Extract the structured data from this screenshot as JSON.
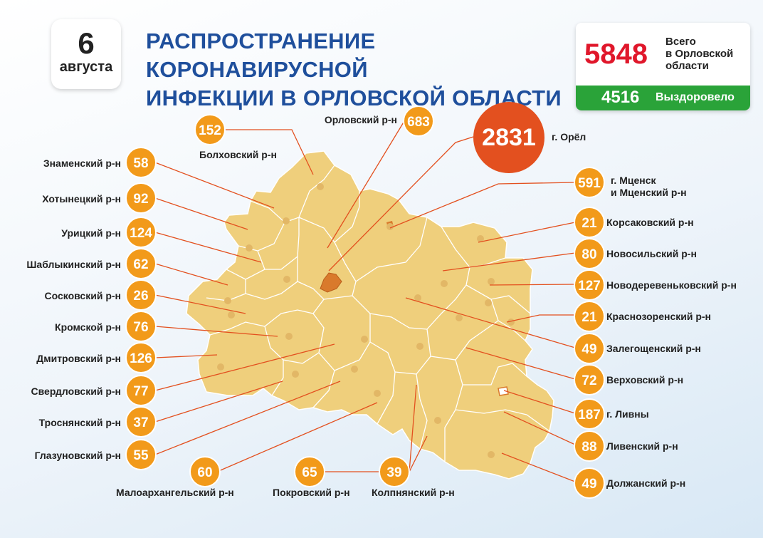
{
  "header": {
    "date_day": "6",
    "date_month": "августа",
    "title_line1": "РАСПРОСТРАНЕНИЕ КОРОНАВИРУСНОЙ",
    "title_line2": "ИНФЕКЦИИ В ОРЛОВСКОЙ ОБЛАСТИ"
  },
  "totals": {
    "total": "5848",
    "total_label_1": "Всего",
    "total_label_2": "в Орловской",
    "total_label_3": "области",
    "recovered": "4516",
    "recovered_label": "Выздоровело"
  },
  "colors": {
    "map_fill": "#efcf7c",
    "badge": "#f29a1a",
    "badge_major": "#e3501f",
    "oryol_city": "#d97a2c",
    "recovered_bg": "#2aa339",
    "total_red": "#e0172b",
    "title_blue": "#1f4f9c"
  },
  "regions": {
    "oryol_city": {
      "name": "г. Орёл",
      "cases": "2831"
    },
    "orlovsky": {
      "name": "Орловский р-н",
      "cases": "683"
    },
    "bolkhovsky": {
      "name": "Болховский р-н",
      "cases": "152"
    },
    "znamensky": {
      "name": "Знаменский р-н",
      "cases": "58"
    },
    "khotynetsky": {
      "name": "Хотынецкий р-н",
      "cases": "92"
    },
    "uritsky": {
      "name": "Урицкий р-н",
      "cases": "124"
    },
    "shablykinsky": {
      "name": "Шаблыкинский р-н",
      "cases": "62"
    },
    "sosokovsky": {
      "name": "Сосковский р-н",
      "cases": "26"
    },
    "kromskoy": {
      "name": "Кромской р-н",
      "cases": "76"
    },
    "dmitrovsky": {
      "name": "Дмитровский р-н",
      "cases": "126"
    },
    "sverdlovsky": {
      "name": "Свердловский р-н",
      "cases": "77"
    },
    "trosnyansky": {
      "name": "Троснянский р-н",
      "cases": "37"
    },
    "glazunovsky": {
      "name": "Глазуновский р-н",
      "cases": "55"
    },
    "maloarkhangelsky": {
      "name": "Малоархангельский р-н",
      "cases": "60"
    },
    "pokrovsky": {
      "name": "Покровский р-н",
      "cases": "65"
    },
    "kolpnyansky": {
      "name": "Колпнянский р-н",
      "cases": "39"
    },
    "mtsensk": {
      "name_1": "г. Мценск",
      "name_2": "и Мценский р-н",
      "cases": "591"
    },
    "korsakovsky": {
      "name": "Корсаковский р-н",
      "cases": "21"
    },
    "novosilsky": {
      "name": "Новосильский р-н",
      "cases": "80"
    },
    "novoderevenkovsky": {
      "name": "Новодеревеньковский р-н",
      "cases": "127"
    },
    "krasnozorensky": {
      "name": "Краснозоренский р-н",
      "cases": "21"
    },
    "zaleg": {
      "name": "Залегощенский р-н",
      "cases": "49"
    },
    "verkhovsky": {
      "name": "Верховский р-н",
      "cases": "72"
    },
    "livny": {
      "name": "г. Ливны",
      "cases": "187"
    },
    "livensky": {
      "name": "Ливенский р-н",
      "cases": "88"
    },
    "dolzhansky": {
      "name": "Должанский р-н",
      "cases": "49"
    }
  }
}
